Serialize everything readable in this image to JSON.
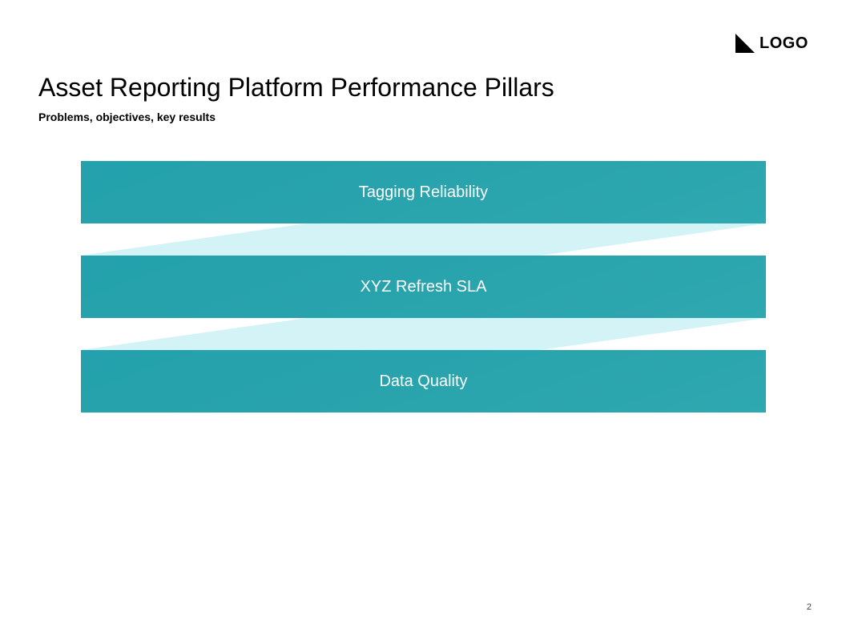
{
  "logo": {
    "text": "LOGO",
    "icon": "logo-triangle-icon"
  },
  "slide": {
    "title": "Asset Reporting Platform Performance Pillars",
    "subtitle": "Problems, objectives, key results",
    "page_number": "2"
  },
  "pillars": [
    {
      "label": "Tagging Reliability"
    },
    {
      "label": "XYZ Refresh SLA"
    },
    {
      "label": "Data Quality"
    }
  ],
  "colors": {
    "pillar_fill": "#27a3ad",
    "connector_fill": "#d3f3f6",
    "pillar_text": "#ffffff"
  }
}
